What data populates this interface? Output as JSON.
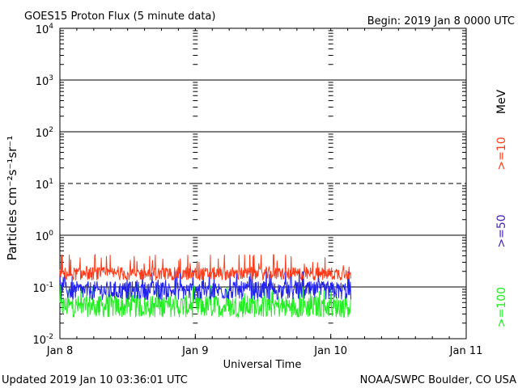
{
  "chart_data": {
    "type": "line",
    "title": "GOES15 Proton Flux (5 minute data)",
    "begin_label": "Begin: 2019 Jan 8 0000 UTC",
    "xlabel": "Universal Time",
    "ylabel": "Particles cm⁻²s⁻¹sr⁻¹",
    "y_scale": "log",
    "ylim": [
      0.01,
      10000
    ],
    "y_ticks": [
      {
        "base": "10",
        "exp": "-2",
        "value": 0.01
      },
      {
        "base": "10",
        "exp": "-1",
        "value": 0.1
      },
      {
        "base": "10",
        "exp": "0",
        "value": 1
      },
      {
        "base": "10",
        "exp": "1",
        "value": 10
      },
      {
        "base": "10",
        "exp": "2",
        "value": 100
      },
      {
        "base": "10",
        "exp": "3",
        "value": 1000
      },
      {
        "base": "10",
        "exp": "4",
        "value": 10000
      }
    ],
    "x_ticks": [
      "Jan 8",
      "Jan 9",
      "Jan 10",
      "Jan 11"
    ],
    "xlim_hours": [
      0,
      72
    ],
    "x_tick_hours": [
      0,
      24,
      48,
      72
    ],
    "data_end_hour": 51.6,
    "threshold_dashed": 10,
    "grid": true,
    "series": [
      {
        "name": ">=10",
        "color": "#ff3b1a",
        "base": 0.18,
        "spread": 0.13,
        "low": 0.11,
        "high": 0.42
      },
      {
        "name": ">=50",
        "color": "#2222ee",
        "base": 0.085,
        "spread": 0.18,
        "low": 0.048,
        "high": 0.2
      },
      {
        "name": ">=100",
        "color": "#22ee22",
        "base": 0.042,
        "spread": 0.22,
        "low": 0.026,
        "high": 0.11
      }
    ],
    "legend_unit": "MeV",
    "footer_left": "Updated 2019 Jan 10 03:36:01 UTC",
    "footer_right": "NOAA/SWPC Boulder, CO USA"
  }
}
